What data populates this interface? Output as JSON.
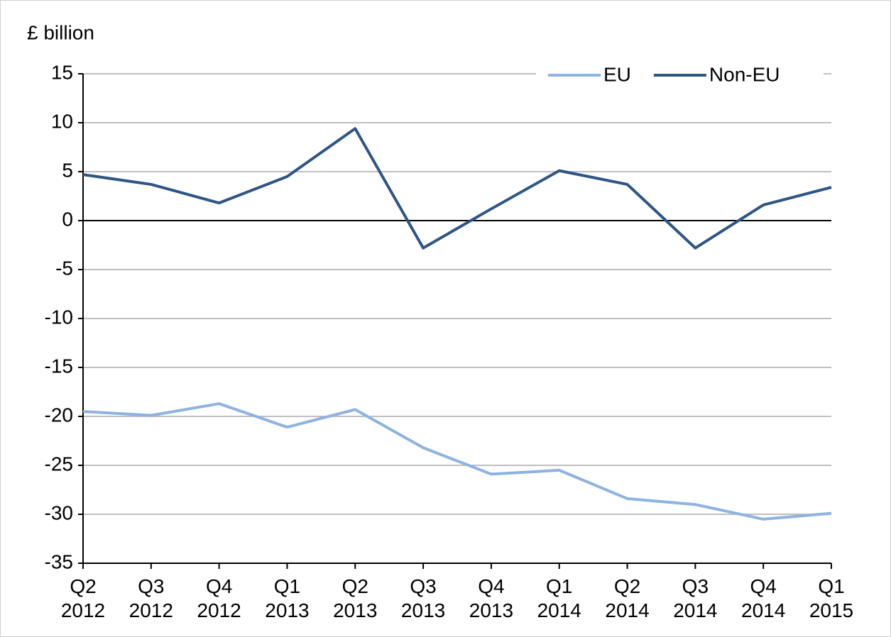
{
  "chart_data": {
    "type": "line",
    "y_label": "£ billion",
    "categories": [
      "Q2 2012",
      "Q3 2012",
      "Q4 2012",
      "Q1 2013",
      "Q2 2013",
      "Q3 2013",
      "Q4 2013",
      "Q1 2014",
      "Q2 2014",
      "Q3 2014",
      "Q4 2014",
      "Q1 2015"
    ],
    "series": [
      {
        "name": "EU",
        "color": "#8db3e2",
        "values": [
          -19.5,
          -19.9,
          -18.7,
          -21.1,
          -19.3,
          -23.2,
          -25.9,
          -25.5,
          -28.4,
          -29.0,
          -30.5,
          -29.9
        ]
      },
      {
        "name": "Non-EU",
        "color": "#2e5587",
        "values": [
          4.7,
          3.7,
          1.8,
          4.5,
          9.4,
          -2.8,
          1.2,
          5.1,
          3.7,
          -2.8,
          1.6,
          3.4
        ]
      }
    ],
    "ylim": [
      -35,
      15
    ],
    "yticks": [
      -35,
      -30,
      -25,
      -20,
      -15,
      -10,
      -5,
      0,
      5,
      10,
      15
    ],
    "grid": true,
    "legend": "top-right"
  }
}
